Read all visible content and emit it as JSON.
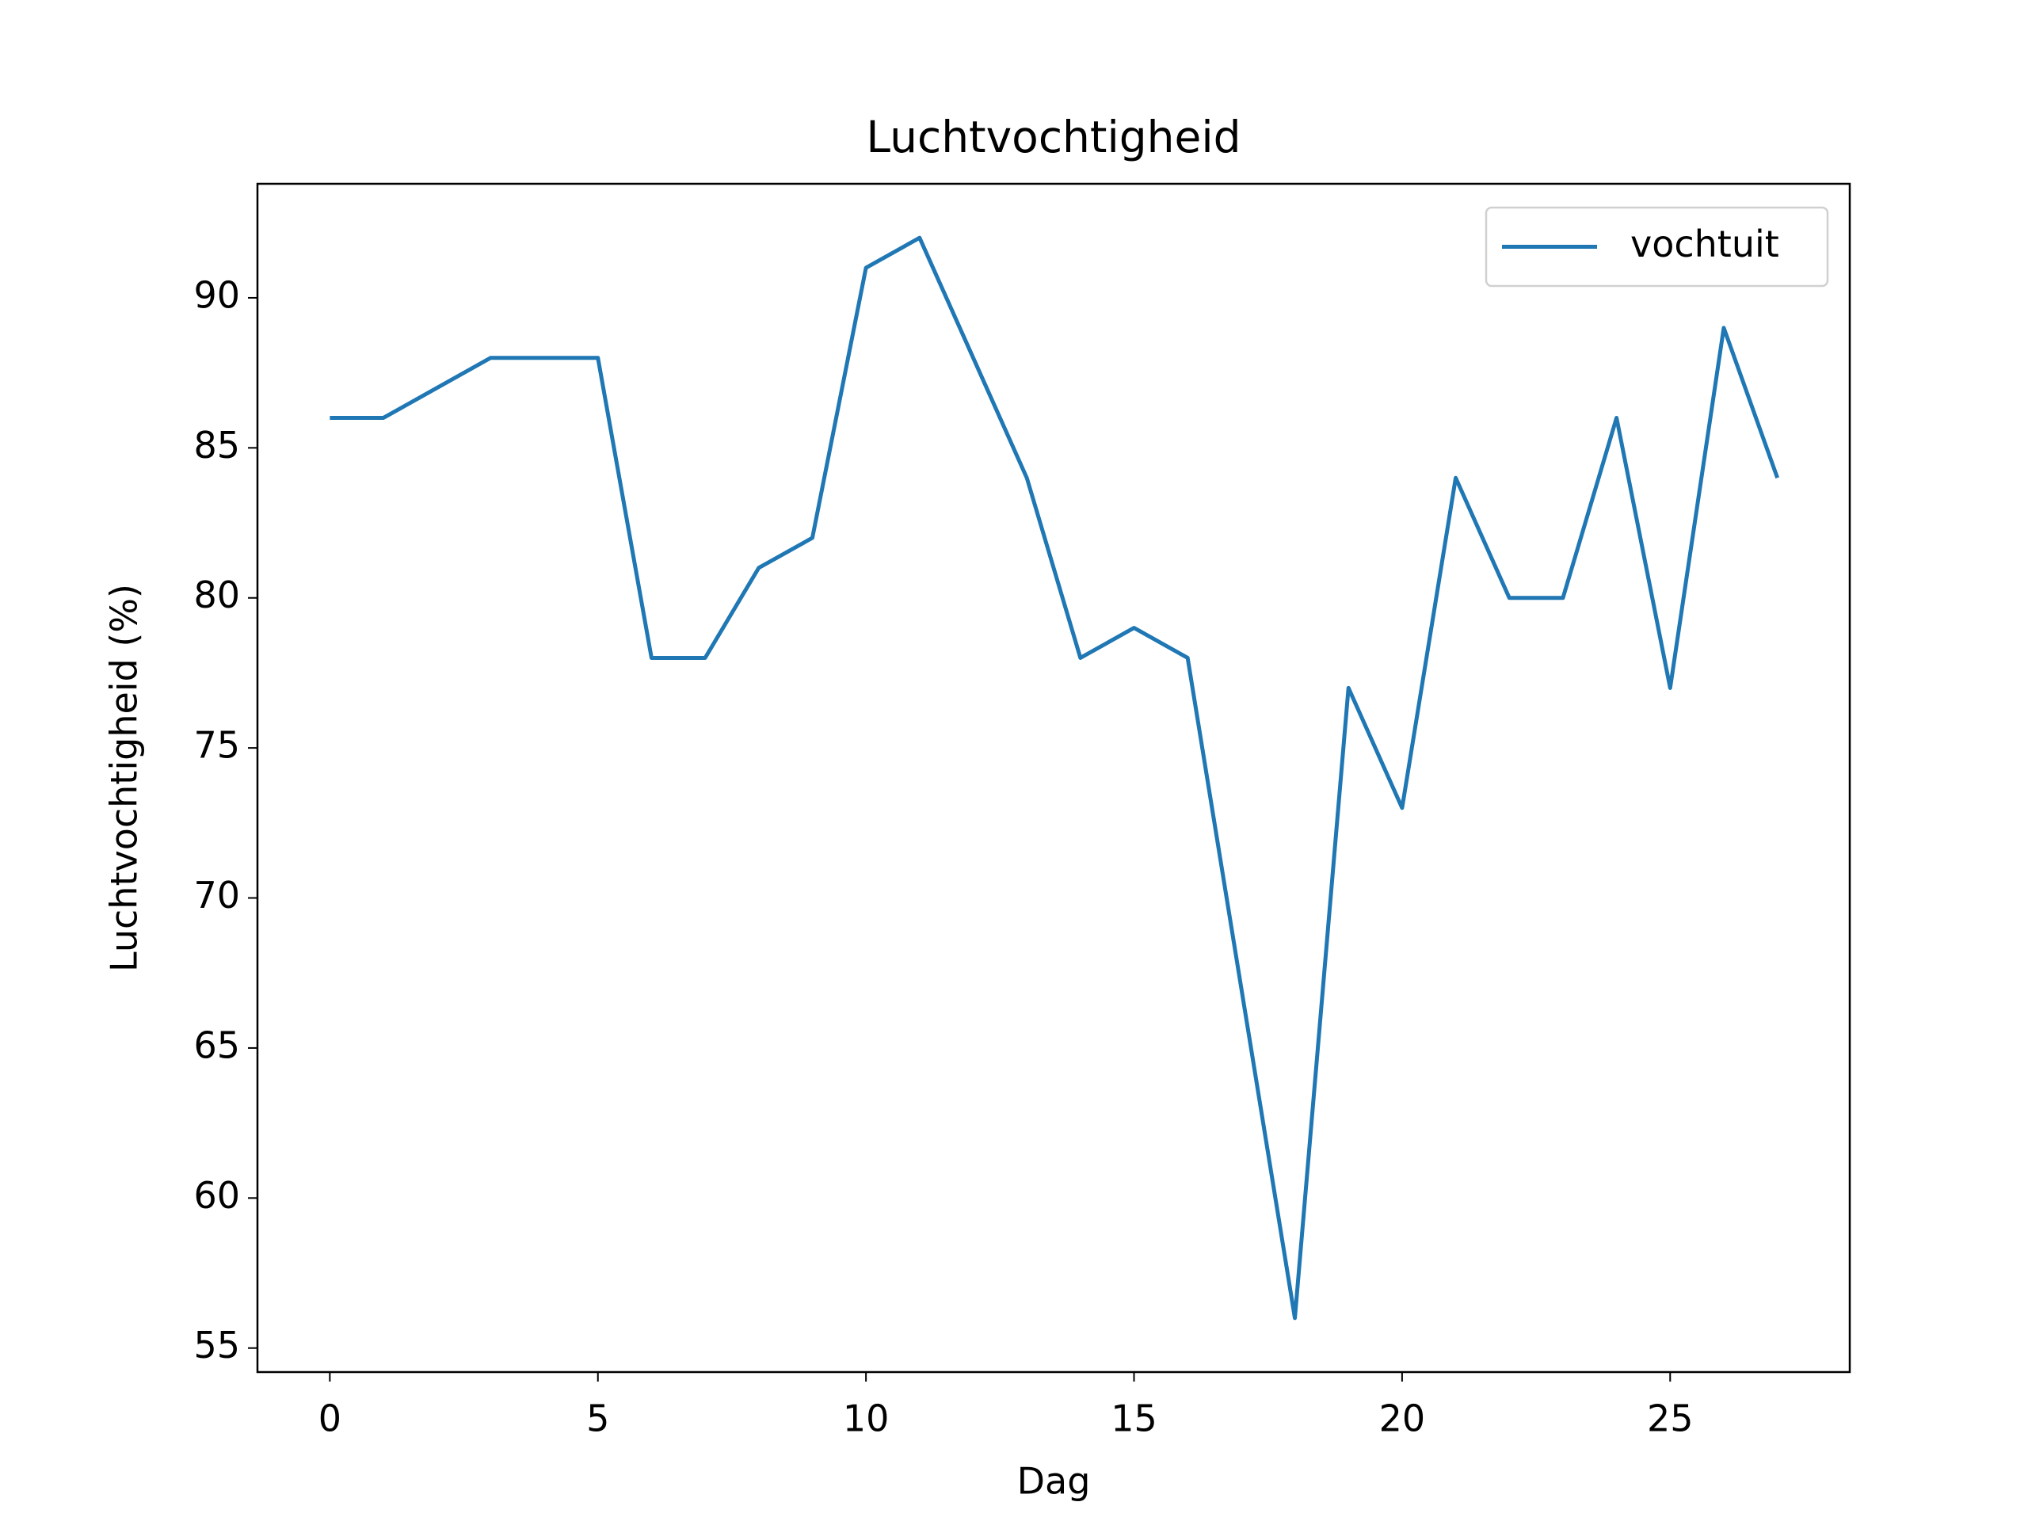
{
  "chart_data": {
    "type": "line",
    "title": "Luchtvochtigheid",
    "x_label": "Dag",
    "y_label": "Luchtvochtigheid (%)",
    "x": [
      0,
      1,
      2,
      3,
      4,
      5,
      6,
      7,
      8,
      9,
      10,
      11,
      12,
      13,
      14,
      15,
      16,
      17,
      18,
      19,
      20,
      21,
      22,
      23,
      24,
      25,
      26,
      27
    ],
    "series": [
      {
        "name": "vochtuit",
        "color": "#1f77b4",
        "values": [
          86,
          86,
          87,
          88,
          88,
          88,
          78,
          78,
          81,
          82,
          91,
          92,
          88,
          84,
          78,
          79,
          78,
          67,
          56,
          77,
          73,
          84,
          80,
          80,
          86,
          77,
          89,
          84
        ]
      }
    ],
    "xlim": [
      -1.35,
      28.35
    ],
    "ylim": [
      54.2,
      93.8
    ],
    "xticks": [
      0,
      5,
      10,
      15,
      20,
      25
    ],
    "yticks": [
      55,
      60,
      65,
      70,
      75,
      80,
      85,
      90
    ],
    "legend": "upper right"
  }
}
